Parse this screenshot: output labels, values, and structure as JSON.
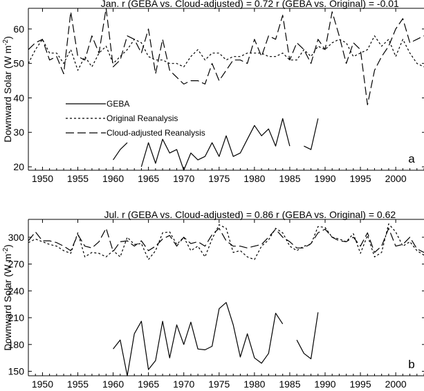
{
  "chart_data": [
    {
      "type": "line",
      "panel_letter": "a",
      "title": "Jan.  r (GEBA vs. Cloud-adjusted) =  0.72  r (GEBA vs. Original) = -0.01",
      "xlabel": "",
      "ylabel": "Downward Solar (W m",
      "ylabel_sup": "-2",
      "ylabel_end": ")",
      "xlim": [
        1948,
        2004
      ],
      "ylim": [
        19,
        66
      ],
      "xticks": [
        1950,
        1955,
        1960,
        1965,
        1970,
        1975,
        1980,
        1985,
        1990,
        1995,
        2000
      ],
      "yticks": [
        20,
        30,
        40,
        50,
        60
      ],
      "legend": {
        "position": "left-middle",
        "entries": [
          {
            "label": "GEBA",
            "style": "solid"
          },
          {
            "label": "Original Reanalysis",
            "style": "dotted"
          },
          {
            "label": "Cloud-adjusted Reanalysis",
            "style": "dashed"
          }
        ]
      },
      "series": [
        {
          "name": "GEBA",
          "style": "solid",
          "x": [
            1960,
            1961,
            1962,
            null,
            1964,
            1965,
            1966,
            1967,
            1968,
            1969,
            1970,
            1971,
            1972,
            1973,
            1974,
            1975,
            1976,
            1977,
            1978,
            1979,
            1980,
            1981,
            1982,
            1983,
            1984,
            1985,
            null,
            1987,
            1988,
            1989
          ],
          "y": [
            22,
            25,
            27,
            null,
            20,
            27,
            21,
            28,
            24,
            25,
            19,
            24,
            22,
            23,
            27,
            23,
            29,
            23,
            24,
            28,
            32,
            29,
            31,
            26,
            34,
            26,
            null,
            26,
            25,
            34
          ]
        },
        {
          "name": "Original Reanalysis",
          "style": "dotted",
          "x": [
            1948,
            1949,
            1950,
            1951,
            1952,
            1953,
            1954,
            1955,
            1956,
            1957,
            1958,
            1959,
            1960,
            1961,
            1962,
            1963,
            1964,
            1965,
            1966,
            1967,
            1968,
            1969,
            1970,
            1971,
            1972,
            1973,
            1974,
            1975,
            1976,
            1977,
            1978,
            1979,
            1980,
            1981,
            1982,
            1983,
            1984,
            1985,
            1986,
            1987,
            1988,
            1989,
            1990,
            1991,
            1992,
            1993,
            1994,
            1995,
            1996,
            1997,
            1998,
            1999,
            2000,
            2001,
            2002,
            2003,
            2004
          ],
          "y": [
            50,
            54,
            57,
            53,
            53,
            50,
            54,
            48,
            52,
            49,
            53,
            55,
            50,
            52,
            54,
            57,
            56,
            52,
            51,
            51,
            50,
            50,
            49,
            52,
            54,
            51,
            53,
            53,
            51,
            52,
            52,
            53,
            53,
            53,
            52,
            52,
            53,
            51,
            51,
            54,
            52,
            55,
            54,
            56,
            57,
            56,
            52,
            53,
            54,
            58,
            55,
            57,
            52,
            57,
            53,
            50,
            49
          ]
        },
        {
          "name": "Cloud-adjusted Reanalysis",
          "style": "dashed",
          "x": [
            1948,
            1949,
            1950,
            1951,
            1952,
            1953,
            1954,
            1955,
            1956,
            1957,
            1958,
            1959,
            1960,
            1961,
            1962,
            1963,
            1964,
            1965,
            1966,
            1967,
            1968,
            1969,
            1970,
            1971,
            1972,
            1973,
            1974,
            1975,
            1976,
            1977,
            1978,
            1979,
            1980,
            1981,
            1982,
            1983,
            1984,
            1985,
            1986,
            1987,
            1988,
            1989,
            1990,
            1991,
            1992,
            1993,
            1994,
            1995,
            1996,
            1997,
            1998,
            1999,
            2000,
            2001,
            2002,
            2003,
            2004
          ],
          "y": [
            54,
            56,
            57,
            51,
            52,
            47,
            65,
            52,
            51,
            58,
            53,
            66,
            49,
            51,
            58,
            57,
            53,
            60,
            47,
            57,
            48,
            46,
            44,
            45,
            45,
            44,
            50,
            45,
            48,
            51,
            51,
            50,
            57,
            52,
            58,
            57,
            64,
            51,
            56,
            54,
            50,
            57,
            54,
            65,
            58,
            50,
            56,
            54,
            38,
            48,
            52,
            55,
            60,
            63,
            56,
            57,
            58
          ]
        }
      ]
    },
    {
      "type": "line",
      "panel_letter": "b",
      "title": "Jul.  r (GEBA vs. Cloud-adjusted) =  0.86  r (GEBA vs. Original) =  0.62",
      "xlabel": "",
      "ylabel": "Downward Solar (W m",
      "ylabel_sup": "-2",
      "ylabel_end": ")",
      "xlim": [
        1948,
        2004
      ],
      "ylim": [
        145,
        320
      ],
      "xticks": [
        1950,
        1955,
        1960,
        1965,
        1970,
        1975,
        1980,
        1985,
        1990,
        1995,
        2000
      ],
      "yticks": [
        150,
        180,
        210,
        240,
        270,
        300
      ],
      "series": [
        {
          "name": "GEBA",
          "style": "solid",
          "x": [
            1960,
            1961,
            1962,
            1963,
            1964,
            1965,
            1966,
            1967,
            1968,
            1969,
            1970,
            1971,
            1972,
            1973,
            1974,
            1975,
            1976,
            1977,
            1978,
            1979,
            1980,
            1981,
            1982,
            1983,
            1984,
            null,
            1986,
            1987,
            1988,
            1989
          ],
          "y": [
            175,
            185,
            145,
            192,
            206,
            152,
            162,
            206,
            165,
            202,
            180,
            205,
            175,
            174,
            178,
            220,
            227,
            202,
            166,
            192,
            165,
            159,
            170,
            215,
            203,
            null,
            185,
            170,
            164,
            216
          ]
        },
        {
          "name": "Original Reanalysis",
          "style": "dotted",
          "x": [
            1948,
            1949,
            1950,
            1951,
            1952,
            1953,
            1954,
            1955,
            1956,
            1957,
            1958,
            1959,
            1960,
            1961,
            1962,
            1963,
            1964,
            1965,
            1966,
            1967,
            1968,
            1969,
            1970,
            1971,
            1972,
            1973,
            1974,
            1975,
            1976,
            1977,
            1978,
            1979,
            1980,
            1981,
            1982,
            1983,
            1984,
            1985,
            1986,
            1987,
            1988,
            1989,
            1990,
            1991,
            1992,
            1993,
            1994,
            1995,
            1996,
            1997,
            1998,
            1999,
            2000,
            2001,
            2002,
            2003,
            2004
          ],
          "y": [
            294,
            298,
            295,
            292,
            290,
            285,
            282,
            305,
            278,
            283,
            282,
            278,
            285,
            278,
            300,
            292,
            293,
            275,
            285,
            305,
            306,
            292,
            300,
            285,
            290,
            278,
            298,
            314,
            310,
            283,
            285,
            278,
            275,
            290,
            297,
            310,
            305,
            290,
            285,
            290,
            292,
            312,
            311,
            300,
            298,
            295,
            304,
            282,
            302,
            278,
            283,
            315,
            306,
            290,
            295,
            285,
            280
          ]
        },
        {
          "name": "Cloud-adjusted Reanalysis",
          "style": "dashed",
          "x": [
            1948,
            1949,
            1950,
            1951,
            1952,
            1953,
            1954,
            1955,
            1956,
            1957,
            1958,
            1959,
            1960,
            1961,
            1962,
            1963,
            1964,
            1965,
            1966,
            1967,
            1968,
            1969,
            1970,
            1971,
            1972,
            1973,
            1974,
            1975,
            1976,
            1977,
            1978,
            1979,
            1980,
            1981,
            1982,
            1983,
            1984,
            1985,
            1986,
            1987,
            1988,
            1989,
            1990,
            1991,
            1992,
            1993,
            1994,
            1995,
            1996,
            1997,
            1998,
            1999,
            2000,
            2001,
            2002,
            2003,
            2004
          ],
          "y": [
            296,
            306,
            296,
            296,
            294,
            290,
            285,
            303,
            290,
            288,
            295,
            310,
            284,
            295,
            296,
            290,
            296,
            285,
            290,
            298,
            302,
            290,
            300,
            293,
            295,
            290,
            303,
            310,
            296,
            290,
            290,
            288,
            290,
            292,
            300,
            309,
            300,
            295,
            288,
            288,
            293,
            305,
            309,
            300,
            296,
            295,
            300,
            290,
            305,
            283,
            290,
            310,
            290,
            292,
            300,
            287,
            283
          ]
        }
      ]
    }
  ]
}
